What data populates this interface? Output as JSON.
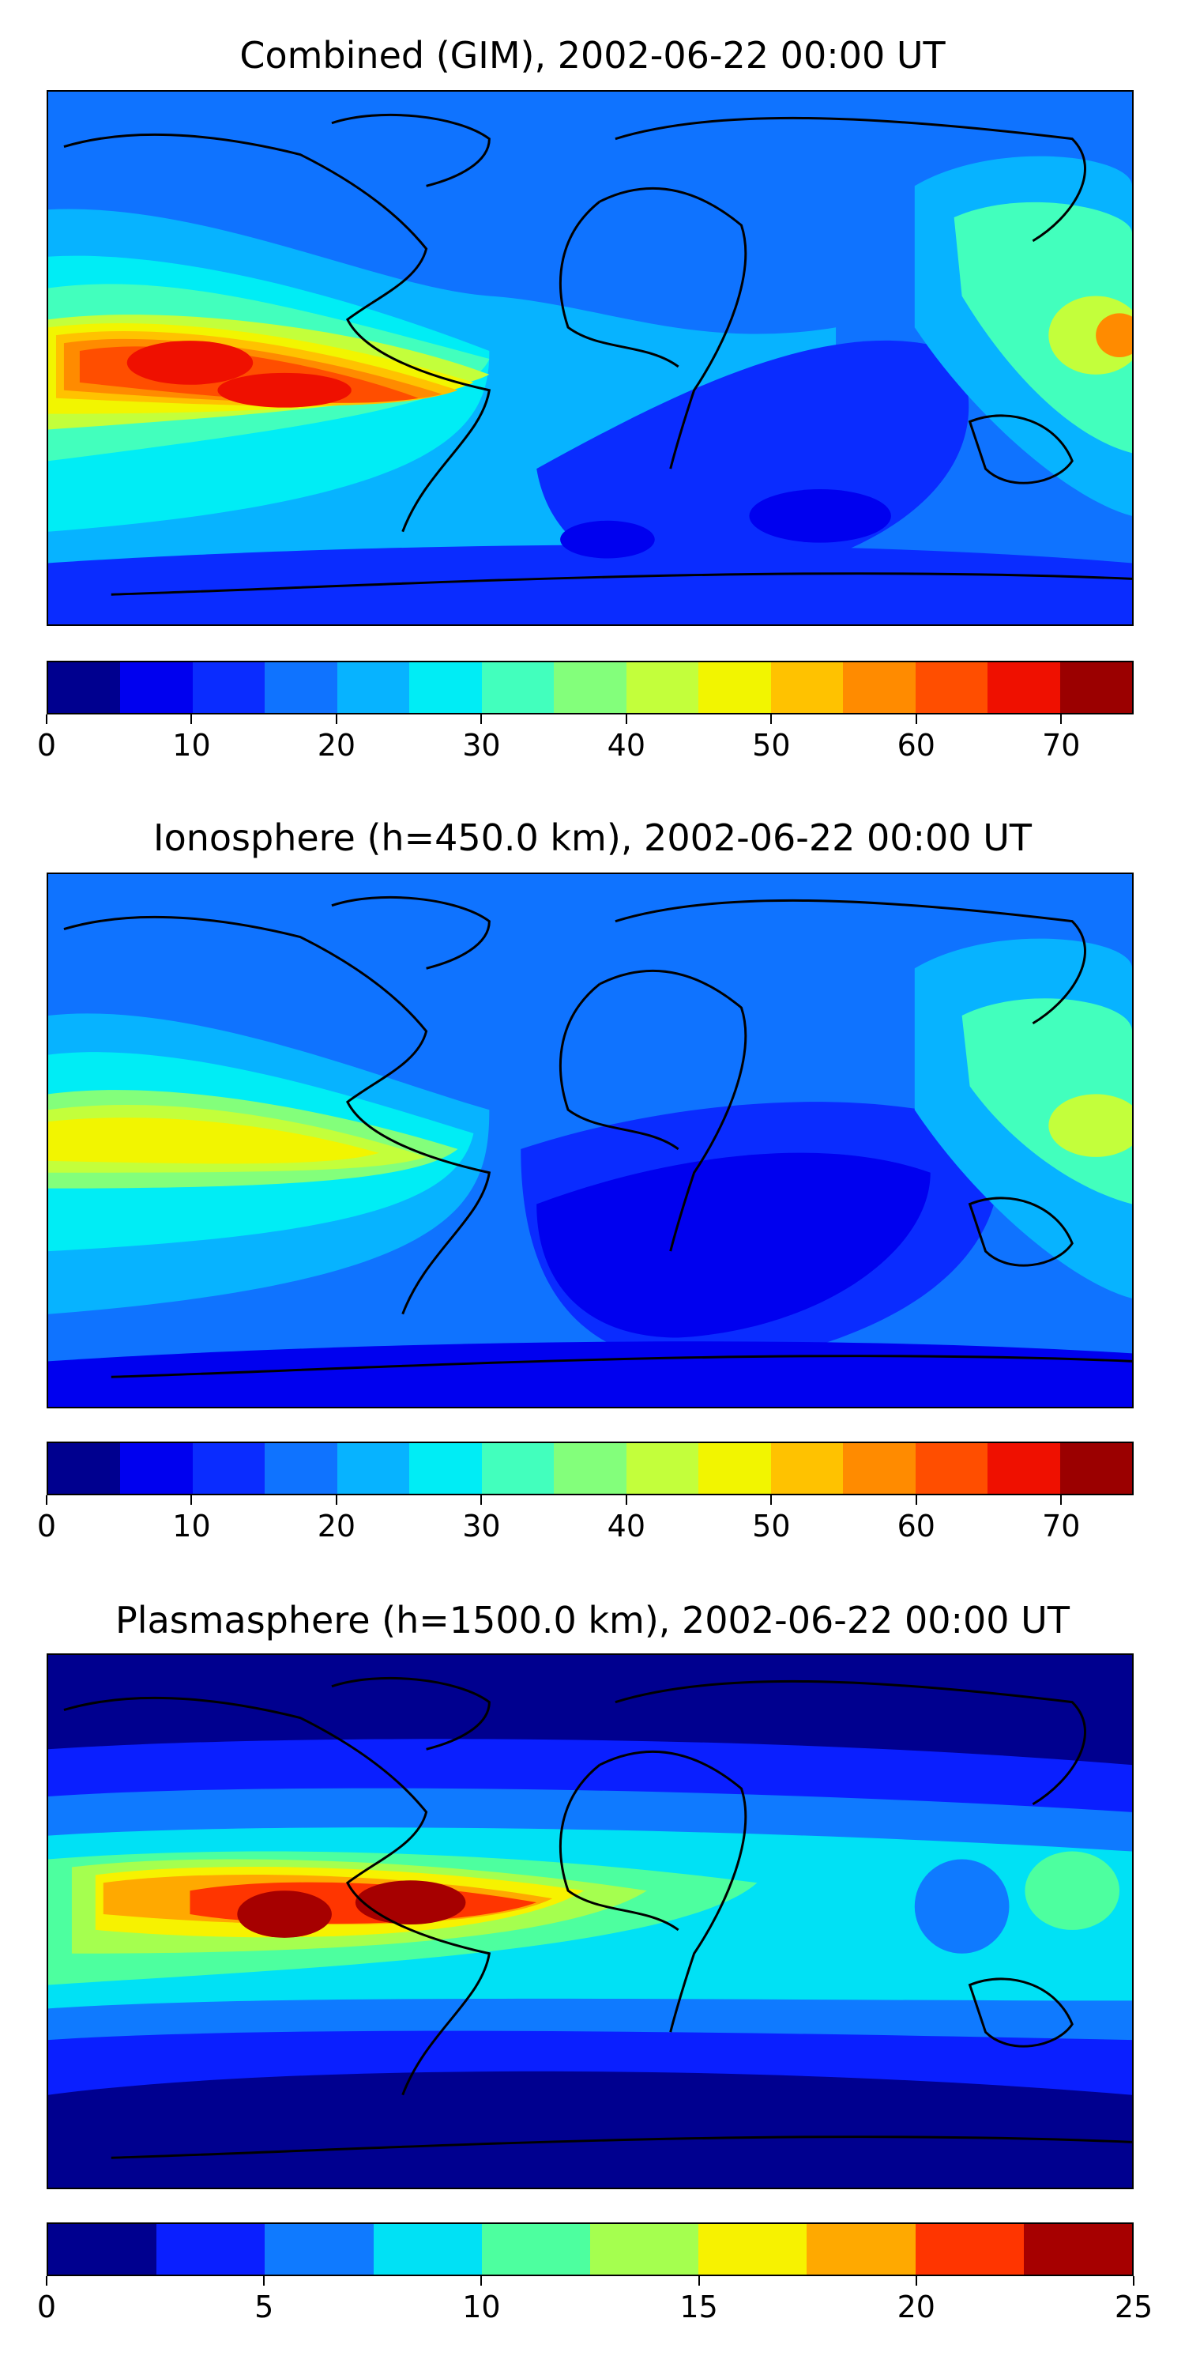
{
  "panels": [
    {
      "title": "Combined (GIM), 2002-06-22 00:00 UT",
      "map_description": "global TEC contour map",
      "colorbar": {
        "min": 0,
        "max": 75,
        "step": 5,
        "tick_labels": [
          "0",
          "10",
          "20",
          "30",
          "40",
          "50",
          "60",
          "70"
        ],
        "tick_values": [
          0,
          10,
          20,
          30,
          40,
          50,
          60,
          70
        ]
      }
    },
    {
      "title": "Ionosphere  (h=450.0 km), 2002-06-22 00:00 UT",
      "map_description": "global TEC contour map",
      "colorbar": {
        "min": 0,
        "max": 75,
        "step": 5,
        "tick_labels": [
          "0",
          "10",
          "20",
          "30",
          "40",
          "50",
          "60",
          "70"
        ],
        "tick_values": [
          0,
          10,
          20,
          30,
          40,
          50,
          60,
          70
        ]
      }
    },
    {
      "title": "Plasmasphere (h=1500.0 km), 2002-06-22 00:00 UT",
      "map_description": "global TEC contour map",
      "colorbar": {
        "min": 0,
        "max": 25,
        "step": 2.5,
        "tick_labels": [
          "0",
          "5",
          "10",
          "15",
          "20",
          "25"
        ],
        "tick_values": [
          0,
          5,
          10,
          15,
          20,
          25
        ]
      }
    }
  ],
  "colors": {
    "jet15": [
      "#00008f",
      "#0000ef",
      "#0a2cff",
      "#0f73ff",
      "#07b3ff",
      "#00edf5",
      "#42ffbd",
      "#83ff7b",
      "#c3ff3b",
      "#f2f500",
      "#ffc200",
      "#ff8b00",
      "#ff4e00",
      "#ef1000",
      "#9b0000"
    ],
    "jet10": [
      "#00008f",
      "#0a1fff",
      "#0f7aff",
      "#00e1f5",
      "#4dff9f",
      "#a5ff4f",
      "#f7f200",
      "#ffa900",
      "#ff3500",
      "#a60000"
    ],
    "coast": "#000000"
  }
}
